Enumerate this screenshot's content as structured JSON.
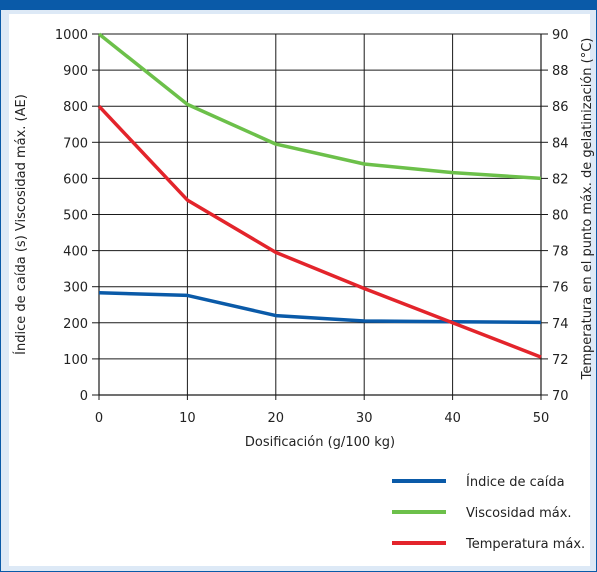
{
  "chart_data": {
    "type": "line",
    "xlabel": "Dosificación (g/100 kg)",
    "ylabel_left": "Índice de caída (s) Viscosidad máx. (AE)",
    "ylabel_right": "Temperatura en el punto máx. de gelatinización (°C)",
    "x_ticks": [
      "0",
      "10",
      "20",
      "30",
      "40",
      "50"
    ],
    "y_left_ticks": [
      "0",
      "100",
      "200",
      "300",
      "400",
      "500",
      "600",
      "700",
      "800",
      "900",
      "1000"
    ],
    "y_right_ticks": [
      "70",
      "72",
      "74",
      "76",
      "78",
      "80",
      "82",
      "84",
      "86",
      "88",
      "90"
    ],
    "xlim": [
      0,
      50
    ],
    "ylim_left": [
      0,
      1000
    ],
    "ylim_right": [
      70,
      90
    ],
    "grid": true,
    "legend_position": "bottom-right",
    "x": [
      0,
      10,
      20,
      30,
      40,
      50
    ],
    "series": [
      {
        "name": "Índice de caída",
        "axis": "left",
        "color": "#0a5aa8",
        "values": [
          283,
          276,
          220,
          205,
          203,
          201
        ]
      },
      {
        "name": "Viscosidad máx.",
        "axis": "left",
        "color": "#6cc04a",
        "values": [
          1000,
          805,
          695,
          640,
          616,
          600
        ]
      },
      {
        "name": "Temperatura máx.",
        "axis": "right",
        "color": "#e3242b",
        "values": [
          86.0,
          80.8,
          77.9,
          75.9,
          74.0,
          72.1
        ]
      }
    ]
  }
}
